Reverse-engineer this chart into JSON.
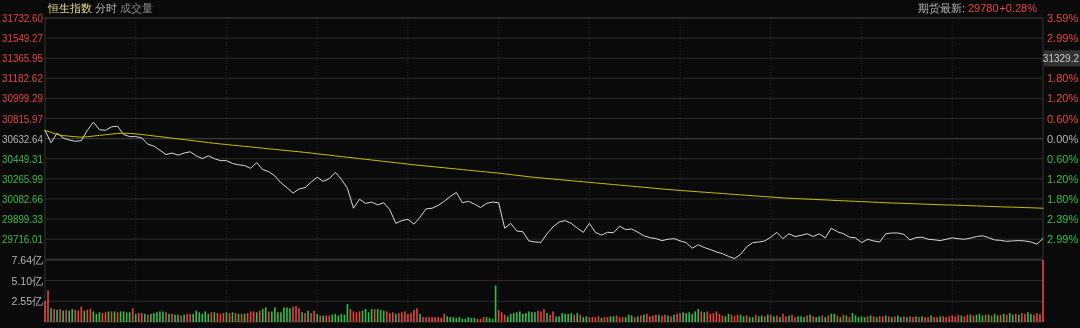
{
  "chart_data": [
    {
      "type": "line",
      "title": "恒生指数",
      "annotations": [
        "分时",
        "成交量",
        "期货最新:",
        "29780",
        "+0.28%",
        "31329.2"
      ],
      "categories": [
        null,
        null,
        null,
        null,
        null,
        null,
        null,
        null,
        null,
        null,
        null,
        null,
        null,
        null,
        null,
        null,
        null,
        null,
        null,
        null,
        null,
        null,
        null,
        null,
        null,
        null,
        null,
        null,
        null,
        null,
        null,
        null,
        null,
        null,
        null,
        null,
        null,
        null,
        null,
        null,
        null,
        null,
        null,
        null,
        null,
        null,
        null,
        null,
        null,
        null,
        null,
        null,
        null,
        null,
        null,
        null,
        null,
        null,
        null,
        null,
        null,
        null,
        null,
        null,
        null,
        null,
        null,
        null,
        null,
        null,
        null,
        null,
        null,
        null,
        null,
        null,
        null,
        null,
        null,
        null,
        null,
        null,
        null,
        null,
        null,
        null,
        null,
        null,
        null,
        null,
        null,
        null,
        null,
        null,
        null,
        null,
        null,
        null,
        null,
        null,
        null,
        null,
        null,
        null,
        null,
        null,
        null,
        null,
        null,
        null,
        null,
        null,
        null,
        null,
        null,
        null,
        null,
        null,
        null,
        null,
        null,
        null,
        null,
        null,
        null,
        null,
        null,
        null,
        null,
        null,
        null,
        null,
        null,
        null,
        null,
        null,
        null,
        null,
        null,
        null,
        null,
        null,
        null,
        null,
        null,
        null,
        null,
        null,
        null,
        null,
        null,
        null,
        null,
        null,
        null,
        null,
        null,
        null,
        null,
        null,
        null,
        null,
        null,
        null,
        null,
        null
      ],
      "ylim": [
        29535,
        31732.6
      ],
      "yticks": [
        {
          "value": 31732.6,
          "label": "31732.60"
        },
        31549.27,
        31365.95,
        31182.62,
        30999.29,
        30815.97,
        30632.64,
        30449.31,
        30265.99,
        30082.66,
        29899.33,
        29716.01
      ],
      "y2lim": [
        -3.58,
        3.59
      ],
      "y2ticks": [
        {
          "value": 3.59,
          "label": "3.59%"
        },
        {
          "value": 2.99,
          "label": "2.99%"
        },
        {
          "value": 2.39,
          "label": null
        },
        {
          "value": 1.8,
          "label": "1.80%"
        },
        {
          "value": 1.2,
          "label": "1.20%"
        },
        {
          "value": 0.6,
          "label": "0.60%"
        },
        {
          "value": 0,
          "label": "0.00%"
        },
        {
          "value": -0.6,
          "label": "0.60%"
        },
        {
          "value": -1.2,
          "label": "1.20%"
        },
        {
          "value": -1.8,
          "label": "1.80%"
        },
        {
          "value": -2.39,
          "label": "2.39%"
        },
        {
          "value": -2.99,
          "label": "2.99%"
        }
      ],
      "ref_lines": [
        {
          "axis": "y",
          "value": 30632.64,
          "color": "#3a3a3a"
        }
      ],
      "grid": true,
      "tick_labels": "y",
      "series": [
        {
          "color": "#d8d8d8",
          "values": [
            30708,
            30595,
            30683,
            30639,
            30620,
            30608,
            30614,
            30708,
            30783,
            30714,
            30708,
            30740,
            30746,
            30670,
            30651,
            30651,
            30639,
            30582,
            30564,
            30526,
            30488,
            30501,
            30482,
            30501,
            30513,
            30476,
            30450,
            30476,
            30450,
            30432,
            30432,
            30406,
            30394,
            30387,
            30362,
            30413,
            30350,
            30331,
            30293,
            30230,
            30186,
            30136,
            30174,
            30186,
            30237,
            30281,
            30243,
            30268,
            30325,
            30262,
            30180,
            29998,
            30080,
            30042,
            30054,
            30029,
            30048,
            29985,
            29860,
            29885,
            29897,
            29853,
            29916,
            29992,
            29998,
            30023,
            30061,
            30105,
            30142,
            30048,
            30061,
            30036,
            30004,
            30042,
            30054,
            30048,
            29816,
            29860,
            29790,
            29784,
            29700,
            29690,
            29687,
            29765,
            29828,
            29872,
            29885,
            29860,
            29816,
            29778,
            29860,
            29778,
            29753,
            29778,
            29775,
            29834,
            29803,
            29809,
            29780,
            29747,
            29730,
            29721,
            29703,
            29715,
            29721,
            29700,
            29684,
            29633,
            29665,
            29640,
            29621,
            29600,
            29584,
            29559,
            29539,
            29577,
            29646,
            29684,
            29690,
            29700,
            29734,
            29778,
            29721,
            29765,
            29740,
            29750,
            29765,
            29740,
            29765,
            29728,
            29816,
            29784,
            29765,
            29734,
            29728,
            29684,
            29715,
            29700,
            29690,
            29765,
            29772,
            29772,
            29760,
            29709,
            29730,
            29734,
            29715,
            29710,
            29703,
            29715,
            29728,
            29720,
            29715,
            29725,
            29740,
            29747,
            29730,
            29709,
            29705,
            29696,
            29700,
            29703,
            29700,
            29690,
            29671,
            29721
          ]
        },
        {
          "color": "#c8c000",
          "values": [
            30708,
            30690,
            30670,
            30660,
            30655,
            30650,
            30646,
            30650,
            30656,
            30662,
            30668,
            30674,
            30680,
            30682,
            30680,
            30676,
            30670,
            30664,
            30657,
            30651,
            30644,
            30637,
            30631,
            30624,
            30617,
            30610,
            30604,
            30597,
            30590,
            30584,
            30579,
            30573,
            30568,
            30562,
            30557,
            30551,
            30546,
            30540,
            30535,
            30529,
            30524,
            30518,
            30513,
            30507,
            30501,
            30494,
            30488,
            30482,
            30475,
            30469,
            30463,
            30457,
            30450,
            30444,
            30438,
            30432,
            30425,
            30419,
            30413,
            30407,
            30400,
            30394,
            30389,
            30383,
            30378,
            30372,
            30367,
            30361,
            30356,
            30350,
            30345,
            30340,
            30334,
            30329,
            30323,
            30318,
            30311,
            30305,
            30298,
            30292,
            30285,
            30279,
            30274,
            30269,
            30264,
            30259,
            30254,
            30249,
            30244,
            30239,
            30234,
            30229,
            30224,
            30219,
            30214,
            30209,
            30204,
            30199,
            30194,
            30189,
            30184,
            30179,
            30174,
            30169,
            30165,
            30160,
            30156,
            30152,
            30148,
            30144,
            30140,
            30136,
            30132,
            30128,
            30124,
            30120,
            30116,
            30112,
            30108,
            30104,
            30100,
            30096,
            30092,
            30089,
            30086,
            30084,
            30081,
            30079,
            30076,
            30074,
            30071,
            30068,
            30066,
            30063,
            30061,
            30058,
            30056,
            30053,
            30051,
            30048,
            30046,
            30044,
            30042,
            30040,
            30038,
            30036,
            30034,
            30032,
            30030,
            30028,
            30027,
            30025,
            30023,
            30021,
            30019,
            30017,
            30015,
            30013,
            30011,
            30009,
            30008,
            30006,
            30004,
            30002,
            30000,
            29998
          ]
        }
      ]
    },
    {
      "type": "bar",
      "ylim": [
        0,
        7.64
      ],
      "yticks": [
        {
          "value": 2.55,
          "label": "2.55亿"
        },
        {
          "value": 5.1,
          "label": "5.10亿"
        },
        {
          "value": 7.64,
          "label": "7.64亿"
        }
      ],
      "grid": true,
      "tick_labels": "y",
      "categories": [
        null,
        null,
        null,
        null,
        null,
        null,
        null,
        null,
        null,
        null,
        null,
        null,
        null,
        null,
        null,
        null,
        null,
        null,
        null,
        null,
        null,
        null,
        null,
        null,
        null,
        null,
        null,
        null,
        null,
        null,
        null,
        null,
        null,
        null,
        null,
        null,
        null,
        null,
        null,
        null,
        null,
        null,
        null,
        null,
        null,
        null,
        null,
        null,
        null,
        null,
        null,
        null,
        null,
        null,
        null,
        null,
        null,
        null,
        null,
        null,
        null,
        null,
        null,
        null,
        null,
        null,
        null,
        null,
        null,
        null,
        null,
        null,
        null,
        null,
        null,
        null,
        null,
        null,
        null,
        null,
        null,
        null,
        null,
        null,
        null,
        null,
        null,
        null,
        null,
        null,
        null,
        null,
        null,
        null,
        null,
        null,
        null,
        null,
        null,
        null,
        null,
        null,
        null,
        null,
        null,
        null,
        null,
        null,
        null,
        null,
        null,
        null,
        null,
        null,
        null,
        null,
        null,
        null,
        null,
        null,
        null,
        null,
        null,
        null,
        null,
        null,
        null,
        null,
        null,
        null,
        null,
        null,
        null,
        null,
        null,
        null,
        null,
        null,
        null,
        null,
        null,
        null,
        null,
        null,
        null,
        null,
        null,
        null,
        null,
        null,
        null,
        null,
        null,
        null,
        null,
        null,
        null,
        null,
        null,
        null,
        null,
        null,
        null,
        null,
        null,
        null,
        null,
        null,
        null,
        null,
        null,
        null,
        null,
        null,
        null,
        null,
        null,
        null,
        null,
        null,
        null,
        null,
        null,
        null,
        null,
        null,
        null,
        null,
        null,
        null,
        null,
        null,
        null,
        null,
        null,
        null,
        null,
        null,
        null,
        null,
        null,
        null,
        null,
        null,
        null,
        null,
        null,
        null,
        null,
        null,
        null,
        null,
        null,
        null,
        null,
        null,
        null,
        null,
        null,
        null,
        null,
        null,
        null,
        null,
        null,
        null,
        null,
        null,
        null,
        null,
        null,
        null,
        null,
        null,
        null,
        null,
        null,
        null,
        null,
        null,
        null,
        null,
        null,
        null,
        null,
        null,
        null,
        null,
        null,
        null,
        null,
        null,
        null,
        null,
        null,
        null,
        null,
        null,
        null,
        null,
        null,
        null,
        null,
        null,
        null,
        null,
        null,
        null,
        null,
        null,
        null,
        null,
        null,
        null,
        null,
        null,
        null,
        null,
        null,
        null,
        null,
        null,
        null,
        null,
        null,
        null,
        null,
        null,
        null,
        null,
        null,
        null,
        null,
        null,
        null,
        null,
        null,
        null,
        null,
        null,
        null,
        null,
        null,
        null,
        null,
        null,
        null,
        null,
        null,
        null,
        null,
        null,
        null,
        null,
        null,
        null,
        null,
        null,
        null,
        null,
        null,
        null,
        null,
        null,
        null,
        null,
        null,
        null,
        null,
        null,
        null
      ],
      "values": [
        2.6,
        3.9,
        1.7,
        1.6,
        1.5,
        1.6,
        1.4,
        1.5,
        1.4,
        1.6,
        1.5,
        1.4,
        1.9,
        1.4,
        1.5,
        1.6,
        1.3,
        1.0,
        1.2,
        1.1,
        1.2,
        1.3,
        1.3,
        1.3,
        1.2,
        1.3,
        1.3,
        1.2,
        1.2,
        1.7,
        1.0,
        1.1,
        1.1,
        1.0,
        0.9,
        1.0,
        1.1,
        1.2,
        1.3,
        1.3,
        1.2,
        1.0,
        1.0,
        0.9,
        0.9,
        0.8,
        0.9,
        1.0,
        1.0,
        1.0,
        1.4,
        1.2,
        1.0,
        1.3,
        1.0,
        1.2,
        1.2,
        1.1,
        1.0,
        1.1,
        1.2,
        1.1,
        1.2,
        1.1,
        1.0,
        1.0,
        1.0,
        1.1,
        1.3,
        1.3,
        1.2,
        1.4,
        1.6,
        1.8,
        1.3,
        1.3,
        1.8,
        1.2,
        1.2,
        1.8,
        1.8,
        1.7,
        1.9,
        2.0,
        1.7,
        1.2,
        1.1,
        1.4,
        1.1,
        1.4,
        1.0,
        0.8,
        0.8,
        0.8,
        0.8,
        0.9,
        1.0,
        0.8,
        1.0,
        0.9,
        2.2,
        1.6,
        1.3,
        1.2,
        1.3,
        1.4,
        1.6,
        1.2,
        1.6,
        1.6,
        1.6,
        1.5,
        1.4,
        1.3,
        1.1,
        1.2,
        1.0,
        1.1,
        1.2,
        1.3,
        1.0,
        1.1,
        1.5,
        1.7,
        1.0,
        0.6,
        0.6,
        0.6,
        0.6,
        0.6,
        0.6,
        0.5,
        1.0,
        0.7,
        0.6,
        0.6,
        0.5,
        0.6,
        0.4,
        0.4,
        0.6,
        0.5,
        0.5,
        0.4,
        0.4,
        0.6,
        0.6,
        0.5,
        0.4,
        4.5,
        1.5,
        1.2,
        0.9,
        0.7,
        1.0,
        1.1,
        1.2,
        1.3,
        1.0,
        1.1,
        1.3,
        1.2,
        1.2,
        1.4,
        1.3,
        1.6,
        1.1,
        0.9,
        1.3,
        0.7,
        0.7,
        1.1,
        1.0,
        1.0,
        1.1,
        0.9,
        1.1,
        0.9,
        0.6,
        0.7,
        0.6,
        0.6,
        0.6,
        0.7,
        0.5,
        0.6,
        0.6,
        0.7,
        0.7,
        0.8,
        0.6,
        0.6,
        0.6,
        0.9,
        0.8,
        0.6,
        0.7,
        0.8,
        0.9,
        1.0,
        0.7,
        0.8,
        0.9,
        0.9,
        0.8,
        0.9,
        0.8,
        0.7,
        0.9,
        1.0,
        1.1,
        1.2,
        1.1,
        1.2,
        1.0,
        1.3,
        1.6,
        1.3,
        1.2,
        1.3,
        1.0,
        1.1,
        1.3,
        1.0,
        0.8,
        0.7,
        1.0,
        0.9,
        0.7,
        0.9,
        0.9,
        0.7,
        0.8,
        0.6,
        0.6,
        0.9,
        0.7,
        0.8,
        0.7,
        0.9,
        0.9,
        0.7,
        0.8,
        0.6,
        1.0,
        0.7,
        0.8,
        0.9,
        0.6,
        0.7,
        0.7,
        0.6,
        0.8,
        0.9,
        0.7,
        0.6,
        0.7,
        0.8,
        0.6,
        0.8,
        1.0,
        1.0,
        0.8,
        0.6,
        0.9,
        0.8,
        0.6,
        1.1,
        0.8,
        0.6,
        0.7,
        0.6,
        0.7,
        0.8,
        0.7,
        0.6,
        0.7,
        0.7,
        0.8,
        0.7,
        0.6,
        0.7,
        0.8,
        0.6,
        0.7,
        0.6,
        0.7,
        0.6,
        0.7,
        0.6,
        0.7,
        0.6,
        0.6,
        0.8,
        0.6,
        0.6,
        0.7,
        0.7,
        0.6,
        0.7,
        0.8,
        0.7,
        0.9,
        0.8,
        0.7,
        0.9,
        0.9,
        0.8,
        0.9,
        1.0,
        0.8,
        0.9,
        0.9,
        0.8,
        1.0,
        0.8,
        0.9,
        1.0,
        0.9,
        1.1,
        0.9,
        1.0,
        0.9,
        1.1,
        1.0,
        1.2,
        1.0,
        0.9,
        1.1,
        1.0,
        7.64
      ],
      "colors": [
        "#e5443f",
        "#e5443f",
        "#2fbf4a",
        "#e5443f",
        "#2fbf4a",
        "#e5443f",
        "#2fbf4a",
        "#e5443f",
        "#2fbf4a",
        "#2fbf4a",
        "#e5443f",
        "#e5443f",
        "#e5443f",
        "#2fbf4a",
        "#e5443f",
        "#e5443f",
        "#2fbf4a",
        "#2fbf4a",
        "#2fbf4a",
        "#e5443f",
        "#e5443f",
        "#2fbf4a",
        "#e5443f",
        "#2fbf4a",
        "#e5443f",
        "#2fbf4a",
        "#2fbf4a",
        "#2fbf4a",
        "#2fbf4a",
        "#e5443f",
        "#2fbf4a",
        "#e5443f",
        "#e5443f",
        "#2fbf4a",
        "#e5443f",
        "#2fbf4a",
        "#2fbf4a",
        "#2fbf4a",
        "#2fbf4a",
        "#2fbf4a",
        "#e5443f",
        "#2fbf4a",
        "#e5443f",
        "#2fbf4a",
        "#2fbf4a",
        "#e5443f",
        "#2fbf4a",
        "#e5443f",
        "#e5443f",
        "#2fbf4a",
        "#2fbf4a",
        "#2fbf4a",
        "#2fbf4a",
        "#2fbf4a",
        "#2fbf4a",
        "#e5443f",
        "#2fbf4a",
        "#e5443f",
        "#e5443f",
        "#e5443f",
        "#2fbf4a",
        "#e5443f",
        "#2fbf4a",
        "#e5443f",
        "#2fbf4a",
        "#e5443f",
        "#2fbf4a",
        "#e5443f",
        "#e5443f",
        "#e5443f",
        "#2fbf4a",
        "#e5443f",
        "#2fbf4a",
        "#2fbf4a",
        "#e5443f",
        "#2fbf4a",
        "#2fbf4a",
        "#2fbf4a",
        "#2fbf4a",
        "#2fbf4a",
        "#2fbf4a",
        "#2fbf4a",
        "#e5443f",
        "#e5443f",
        "#e5443f",
        "#2fbf4a",
        "#e5443f",
        "#2fbf4a",
        "#e5443f",
        "#e5443f",
        "#2fbf4a",
        "#e5443f",
        "#2fbf4a",
        "#e5443f",
        "#e5443f",
        "#2fbf4a",
        "#2fbf4a",
        "#2fbf4a",
        "#2fbf4a",
        "#2fbf4a",
        "#2fbf4a",
        "#e5443f",
        "#e5443f",
        "#e5443f",
        "#e5443f",
        "#2fbf4a",
        "#2fbf4a",
        "#2fbf4a",
        "#2fbf4a",
        "#e5443f",
        "#2fbf4a",
        "#2fbf4a",
        "#2fbf4a",
        "#e5443f",
        "#e5443f",
        "#e5443f",
        "#2fbf4a",
        "#e5443f",
        "#e5443f",
        "#e5443f",
        "#e5443f",
        "#e5443f",
        "#e5443f",
        "#e5443f",
        "#2fbf4a",
        "#e5443f",
        "#e5443f",
        "#e5443f",
        "#e5443f",
        "#e5443f",
        "#e5443f",
        "#e5443f",
        "#e5443f",
        "#2fbf4a",
        "#2fbf4a",
        "#2fbf4a",
        "#2fbf4a",
        "#2fbf4a",
        "#2fbf4a",
        "#2fbf4a",
        "#2fbf4a",
        "#2fbf4a",
        "#2fbf4a",
        "#e5443f",
        "#e5443f",
        "#e5443f",
        "#2fbf4a",
        "#2fbf4a",
        "#2fbf4a",
        "#2fbf4a",
        "#e5443f",
        "#e5443f",
        "#e5443f",
        "#2fbf4a",
        "#2fbf4a",
        "#2fbf4a",
        "#2fbf4a",
        "#2fbf4a",
        "#2fbf4a",
        "#2fbf4a",
        "#2fbf4a",
        "#2fbf4a",
        "#2fbf4a",
        "#e5443f",
        "#e5443f",
        "#e5443f",
        "#2fbf4a",
        "#e5443f",
        "#e5443f",
        "#2fbf4a",
        "#2fbf4a",
        "#2fbf4a",
        "#2fbf4a",
        "#2fbf4a",
        "#2fbf4a",
        "#e5443f",
        "#2fbf4a",
        "#e5443f",
        "#2fbf4a",
        "#2fbf4a",
        "#e5443f",
        "#e5443f",
        "#e5443f",
        "#e5443f",
        "#2fbf4a",
        "#e5443f",
        "#e5443f",
        "#2fbf4a",
        "#2fbf4a",
        "#e5443f",
        "#e5443f",
        "#e5443f",
        "#2fbf4a",
        "#2fbf4a",
        "#2fbf4a",
        "#e5443f",
        "#2fbf4a",
        "#e5443f",
        "#2fbf4a",
        "#e5443f",
        "#e5443f",
        "#e5443f",
        "#e5443f",
        "#2fbf4a",
        "#e5443f",
        "#e5443f",
        "#2fbf4a",
        "#e5443f",
        "#2fbf4a",
        "#e5443f",
        "#e5443f",
        "#2fbf4a",
        "#2fbf4a",
        "#2fbf4a",
        "#2fbf4a",
        "#2fbf4a",
        "#2fbf4a",
        "#e5443f",
        "#2fbf4a",
        "#e5443f",
        "#e5443f",
        "#e5443f",
        "#e5443f",
        "#e5443f",
        "#e5443f",
        "#2fbf4a",
        "#2fbf4a",
        "#e5443f",
        "#e5443f",
        "#e5443f",
        "#2fbf4a",
        "#2fbf4a",
        "#e5443f",
        "#2fbf4a",
        "#2fbf4a",
        "#e5443f",
        "#2fbf4a",
        "#2fbf4a",
        "#e5443f",
        "#2fbf4a",
        "#e5443f",
        "#2fbf4a",
        "#e5443f",
        "#2fbf4a",
        "#e5443f",
        "#e5443f",
        "#2fbf4a",
        "#e5443f",
        "#e5443f",
        "#2fbf4a",
        "#2fbf4a",
        "#2fbf4a",
        "#e5443f",
        "#2fbf4a",
        "#e5443f",
        "#2fbf4a",
        "#2fbf4a",
        "#e5443f",
        "#2fbf4a",
        "#e5443f",
        "#2fbf4a",
        "#2fbf4a",
        "#e5443f",
        "#2fbf4a",
        "#e5443f",
        "#2fbf4a",
        "#e5443f",
        "#2fbf4a",
        "#2fbf4a",
        "#2fbf4a",
        "#2fbf4a",
        "#2fbf4a",
        "#e5443f",
        "#2fbf4a",
        "#e5443f",
        "#2fbf4a",
        "#e5443f",
        "#e5443f",
        "#2fbf4a",
        "#e5443f",
        "#2fbf4a",
        "#e5443f",
        "#2fbf4a",
        "#2fbf4a",
        "#e5443f",
        "#2fbf4a",
        "#e5443f",
        "#e5443f",
        "#2fbf4a",
        "#e5443f",
        "#2fbf4a",
        "#e5443f",
        "#e5443f",
        "#2fbf4a",
        "#e5443f",
        "#e5443f",
        "#2fbf4a",
        "#e5443f",
        "#e5443f",
        "#e5443f",
        "#e5443f",
        "#e5443f",
        "#e5443f",
        "#2fbf4a",
        "#e5443f",
        "#e5443f",
        "#2fbf4a",
        "#e5443f",
        "#2fbf4a",
        "#2fbf4a",
        "#2fbf4a",
        "#e5443f",
        "#2fbf4a",
        "#e5443f",
        "#2fbf4a",
        "#2fbf4a",
        "#e5443f",
        "#2fbf4a",
        "#e5443f",
        "#2fbf4a",
        "#2fbf4a",
        "#e5443f",
        "#2fbf4a",
        "#e5443f",
        "#e5443f",
        "#2fbf4a",
        "#2fbf4a",
        "#e5443f",
        "#e5443f",
        "#e5443f",
        "#e5443f"
      ]
    }
  ]
}
